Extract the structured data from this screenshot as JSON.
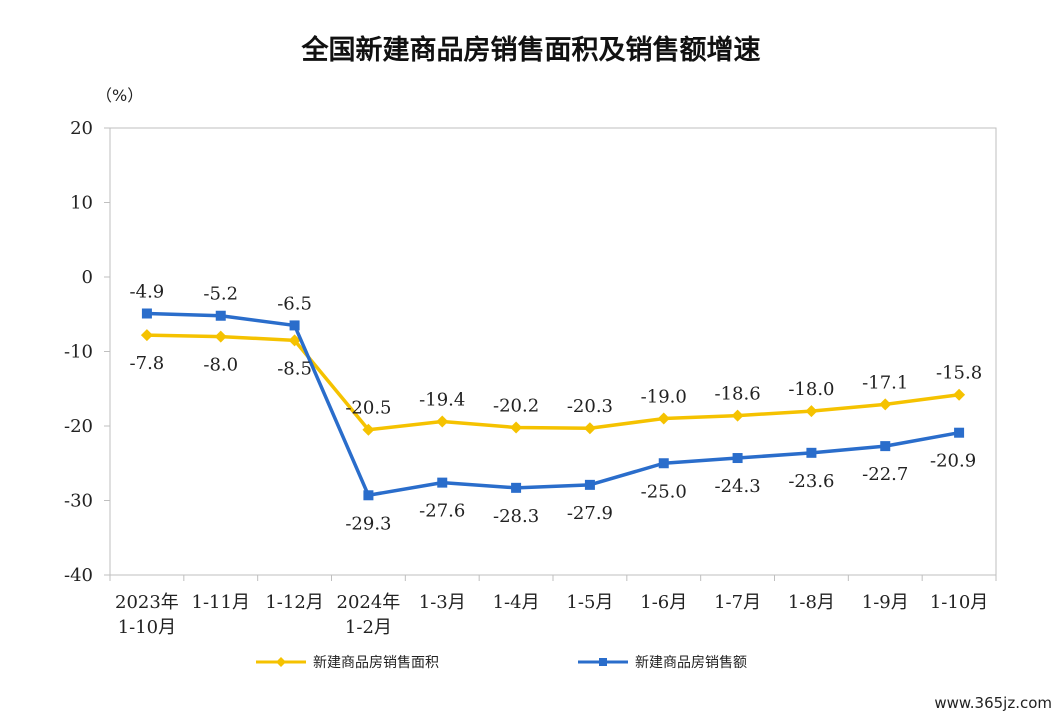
{
  "chart_data": {
    "type": "line",
    "title": "全国新建商品房销售面积及销售额增速",
    "unit_label": "（%）",
    "categories": [
      [
        "2023年",
        "1-10月"
      ],
      [
        "1-11月"
      ],
      [
        "1-12月"
      ],
      [
        "2024年",
        "1-2月"
      ],
      [
        "1-3月"
      ],
      [
        "1-4月"
      ],
      [
        "1-5月"
      ],
      [
        "1-6月"
      ],
      [
        "1-7月"
      ],
      [
        "1-8月"
      ],
      [
        "1-9月"
      ],
      [
        "1-10月"
      ]
    ],
    "yticks": [
      "20",
      "10",
      "0",
      "-10",
      "-20",
      "-30",
      "-40"
    ],
    "ylim": [
      -40,
      20
    ],
    "series": [
      {
        "name": "新建商品房销售面积",
        "color": "#F5C200",
        "marker": "diamond",
        "values": [
          -7.8,
          -8.0,
          -8.5,
          -20.5,
          -19.4,
          -20.2,
          -20.3,
          -19.0,
          -18.6,
          -18.0,
          -17.1,
          -15.8
        ],
        "labels": [
          "-7.8",
          "-8.0",
          "-8.5",
          "-20.5",
          "-19.4",
          "-20.2",
          "-20.3",
          "-19.0",
          "-18.6",
          "-18.0",
          "-17.1",
          "-15.8"
        ]
      },
      {
        "name": "新建商品房销售额",
        "color": "#2A6DCB",
        "marker": "square",
        "values": [
          -4.9,
          -5.2,
          -6.5,
          -29.3,
          -27.6,
          -28.3,
          -27.9,
          -25.0,
          -24.3,
          -23.6,
          -22.7,
          -20.9
        ],
        "labels": [
          "-4.9",
          "-5.2",
          "-6.5",
          "-29.3",
          "-27.6",
          "-28.3",
          "-27.9",
          "-25.0",
          "-24.3",
          "-23.6",
          "-22.7",
          "-20.9"
        ]
      }
    ],
    "grid": false,
    "legend_position": "bottom"
  },
  "watermark": "www.365jz.com"
}
